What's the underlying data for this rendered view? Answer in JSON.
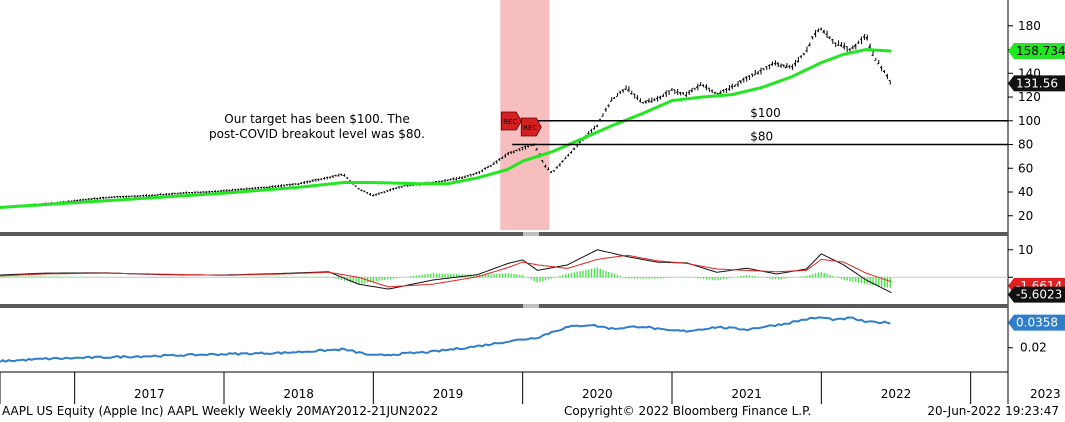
{
  "footer": {
    "left": "AAPL US Equity (Apple Inc) AAPL Weekly  Weekly 20MAY2012-21JUN2022",
    "center": "Copyright© 2022 Bloomberg Finance L.P.",
    "right": "20-Jun-2022 19:23:47"
  },
  "annotation": {
    "line1": "Our target has been $100. The",
    "line2": "post-COVID breakout level was $80."
  },
  "chart_data": {
    "type": "line",
    "x_axis": {
      "years": [
        "2017",
        "2018",
        "2019",
        "2020",
        "2021",
        "2022",
        "2023"
      ],
      "xlim": [
        2016.5,
        2023.25
      ]
    },
    "price_panel": {
      "yticks": [
        20,
        40,
        60,
        80,
        100,
        120,
        140,
        160,
        180
      ],
      "ylim": [
        8,
        195
      ],
      "series": [
        {
          "role": "price",
          "x": [
            2016.5,
            2016.7,
            2016.9,
            2017.1,
            2017.3,
            2017.5,
            2017.7,
            2017.9,
            2018.1,
            2018.3,
            2018.5,
            2018.7,
            2018.8,
            2018.9,
            2019.0,
            2019.2,
            2019.4,
            2019.5,
            2019.6,
            2019.7,
            2019.8,
            2019.9,
            2020.0,
            2020.08,
            2020.15,
            2020.2,
            2020.3,
            2020.4,
            2020.5,
            2020.6,
            2020.7,
            2020.8,
            2020.9,
            2021.0,
            2021.1,
            2021.2,
            2021.3,
            2021.4,
            2021.5,
            2021.6,
            2021.7,
            2021.8,
            2021.9,
            2021.95,
            2022.0,
            2022.1,
            2022.2,
            2022.3,
            2022.35,
            2022.42,
            2022.47
          ],
          "y": [
            27,
            29,
            31,
            34,
            36,
            37,
            39,
            40,
            42,
            44,
            47,
            52,
            55,
            43,
            37,
            45,
            48,
            50,
            52,
            56,
            63,
            72,
            77,
            80,
            62,
            56,
            70,
            84,
            96,
            118,
            128,
            115,
            118,
            126,
            122,
            131,
            122,
            128,
            136,
            142,
            149,
            144,
            158,
            172,
            178,
            165,
            160,
            172,
            155,
            142,
            131.56
          ]
        },
        {
          "role": "moving-average",
          "x": [
            2016.5,
            2017.0,
            2017.5,
            2018.0,
            2018.5,
            2018.8,
            2019.0,
            2019.3,
            2019.5,
            2019.7,
            2019.9,
            2020.0,
            2020.2,
            2020.4,
            2020.6,
            2020.8,
            2021.0,
            2021.2,
            2021.4,
            2021.6,
            2021.8,
            2022.0,
            2022.15,
            2022.3,
            2022.47
          ],
          "y": [
            27,
            31,
            35,
            39,
            44,
            48,
            48,
            47,
            47,
            52,
            59,
            66,
            74,
            85,
            96,
            106,
            117,
            120,
            122,
            128,
            137,
            149,
            156,
            160,
            158.734
          ]
        }
      ],
      "last_price": "131.56",
      "ma_value": "158.734",
      "levels": [
        {
          "value": 100,
          "label": "$100",
          "x_start": 2019.93
        },
        {
          "value": 80,
          "label": "$80",
          "x_start": 2019.93
        }
      ],
      "recession_band": {
        "from": 2019.85,
        "to": 2020.18,
        "labels": [
          "REC",
          "REC"
        ]
      }
    },
    "macd_panel": {
      "yticks": [
        10,
        0
      ],
      "ylim": [
        -9,
        15
      ],
      "series": [
        {
          "role": "macd",
          "x": [
            2016.5,
            2016.8,
            2017.2,
            2017.6,
            2018.0,
            2018.4,
            2018.7,
            2018.9,
            2019.1,
            2019.4,
            2019.7,
            2019.9,
            2020.0,
            2020.1,
            2020.3,
            2020.5,
            2020.7,
            2020.9,
            2021.1,
            2021.3,
            2021.5,
            2021.7,
            2021.9,
            2022.0,
            2022.15,
            2022.3,
            2022.47
          ],
          "y": [
            0.8,
            1.5,
            1.6,
            0.9,
            0.8,
            1.4,
            2.0,
            -2.5,
            -4.3,
            -1.0,
            1.0,
            5.0,
            6.3,
            2.5,
            4.5,
            10.0,
            7.5,
            5.5,
            5.2,
            1.8,
            3.3,
            1.2,
            3.0,
            8.5,
            4.5,
            -1.0,
            -5.6023
          ]
        },
        {
          "role": "signal",
          "x": [
            2016.5,
            2016.8,
            2017.2,
            2017.6,
            2018.0,
            2018.4,
            2018.7,
            2018.9,
            2019.1,
            2019.4,
            2019.7,
            2019.9,
            2020.0,
            2020.1,
            2020.3,
            2020.5,
            2020.7,
            2020.9,
            2021.1,
            2021.3,
            2021.5,
            2021.7,
            2021.9,
            2022.0,
            2022.15,
            2022.3,
            2022.47
          ],
          "y": [
            0.5,
            1.2,
            1.5,
            1.1,
            0.7,
            1.2,
            1.8,
            0.0,
            -3.5,
            -2.5,
            0.2,
            3.5,
            5.5,
            4.5,
            3.2,
            6.5,
            8.0,
            6.0,
            5.0,
            3.0,
            2.5,
            2.0,
            2.5,
            6.5,
            5.5,
            1.5,
            -1.6614
          ]
        }
      ],
      "last_values": [
        "-1.6614",
        "-5.6023"
      ]
    },
    "ratio_panel": {
      "yticks": [
        0.02
      ],
      "ylim": [
        0.006,
        0.045
      ],
      "series": [
        {
          "role": "ratio",
          "x": [
            2016.5,
            2016.8,
            2017.2,
            2017.6,
            2018.0,
            2018.4,
            2018.8,
            2019.0,
            2019.4,
            2019.7,
            2019.9,
            2020.1,
            2020.2,
            2020.3,
            2020.45,
            2020.6,
            2020.8,
            2020.95,
            2021.1,
            2021.3,
            2021.5,
            2021.6,
            2021.75,
            2021.9,
            2022.0,
            2022.1,
            2022.2,
            2022.3,
            2022.47
          ],
          "y": [
            0.0115,
            0.013,
            0.014,
            0.015,
            0.016,
            0.0168,
            0.019,
            0.015,
            0.0175,
            0.021,
            0.024,
            0.0265,
            0.03,
            0.033,
            0.0345,
            0.032,
            0.0335,
            0.031,
            0.0305,
            0.033,
            0.0315,
            0.033,
            0.035,
            0.038,
            0.039,
            0.0375,
            0.0388,
            0.0362,
            0.0358
          ]
        }
      ],
      "last_value": "0.0358"
    },
    "colors": {
      "price": "#000000",
      "ma": "#22e622",
      "macd": "#111111",
      "signal": "#e32222",
      "hist": "#3fe03f",
      "ratio": "#2f7ec9",
      "recession": "#f4b3b3",
      "panel_divider": "#5a5a5a"
    }
  }
}
